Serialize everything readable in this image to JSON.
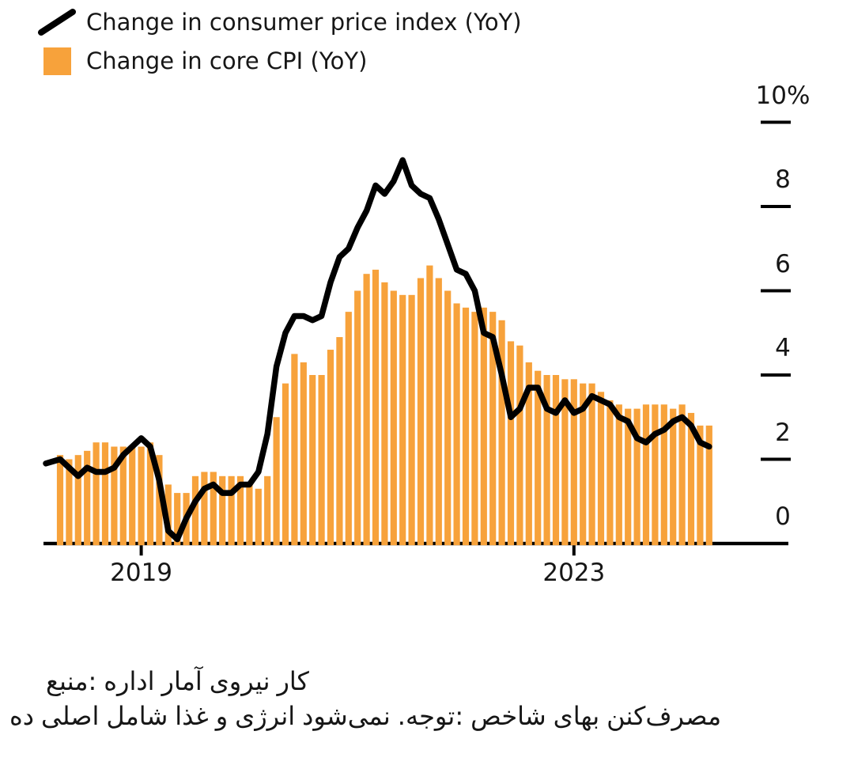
{
  "legend": {
    "items": [
      {
        "label": "Change in consumer price index (YoY)",
        "swatch": "black-line"
      },
      {
        "label": "Change in core CPI (YoY)",
        "swatch": "orange-square"
      }
    ]
  },
  "axes": {
    "y": {
      "items": [
        {
          "label": "10%",
          "value": 10
        },
        {
          "label": "8",
          "value": 8
        },
        {
          "label": "6",
          "value": 6
        },
        {
          "label": "4",
          "value": 4
        },
        {
          "label": "2",
          "value": 2
        },
        {
          "label": "0",
          "value": 0
        }
      ]
    },
    "x": {
      "items": [
        {
          "label": "2019",
          "tick_month": "2020-01"
        },
        {
          "label": "2023",
          "tick_month": "2024-01"
        }
      ]
    }
  },
  "footnote": {
    "source_text_logical": "منبع: اداره آمار نیروی کار",
    "note_text_logical": "توجه: شاخص بهای مصرف‌کننده اصلی شامل غذا و انرژی نمی‌شود.",
    "line1_words": [
      "منبع:",
      "اداره",
      "آمار",
      "نیروی",
      "کار"
    ],
    "line2_words": [
      "ده",
      "اصلی",
      "شامل",
      "غذا",
      "و",
      "انرژی",
      "نمی‌شود",
      ".توجه:",
      "شاخص",
      "بهای",
      "مصرف‌کنن"
    ]
  },
  "colors": {
    "bar": "#F7A23B",
    "line": "#000000",
    "axis": "#000000",
    "text": "#161616"
  },
  "chart_data": {
    "type": "bar+line",
    "title": "",
    "xlabel": "",
    "ylabel": "",
    "ylim": [
      0,
      10
    ],
    "y_ticks": [
      0,
      2,
      4,
      6,
      8,
      10
    ],
    "y_top_tick_label": "10%",
    "x_tick_labels": [
      "2019",
      "2023"
    ],
    "grid": false,
    "legend_position": "top-left",
    "x_unit": "month",
    "months": [
      "2019-04",
      "2019-05",
      "2019-06",
      "2019-07",
      "2019-08",
      "2019-09",
      "2019-10",
      "2019-11",
      "2019-12",
      "2020-01",
      "2020-02",
      "2020-03",
      "2020-04",
      "2020-05",
      "2020-06",
      "2020-07",
      "2020-08",
      "2020-09",
      "2020-10",
      "2020-11",
      "2020-12",
      "2021-01",
      "2021-02",
      "2021-03",
      "2021-04",
      "2021-05",
      "2021-06",
      "2021-07",
      "2021-08",
      "2021-09",
      "2021-10",
      "2021-11",
      "2021-12",
      "2022-01",
      "2022-02",
      "2022-03",
      "2022-04",
      "2022-05",
      "2022-06",
      "2022-07",
      "2022-08",
      "2022-09",
      "2022-10",
      "2022-11",
      "2022-12",
      "2023-01",
      "2023-02",
      "2023-03",
      "2023-04",
      "2023-05",
      "2023-06",
      "2023-07",
      "2023-08",
      "2023-09",
      "2023-10",
      "2023-11",
      "2023-12",
      "2024-01",
      "2024-02",
      "2024-03",
      "2024-04",
      "2024-05",
      "2024-06",
      "2024-07",
      "2024-08",
      "2024-09",
      "2024-10",
      "2024-11",
      "2024-12",
      "2025-01",
      "2025-02",
      "2025-03",
      "2025-04"
    ],
    "series": [
      {
        "name": "Change in consumer price index (YoY)",
        "type": "line",
        "color": "#000000",
        "values": [
          2.0,
          1.8,
          1.6,
          1.8,
          1.7,
          1.7,
          1.8,
          2.1,
          2.3,
          2.5,
          2.3,
          1.5,
          0.3,
          0.1,
          0.6,
          1.0,
          1.3,
          1.4,
          1.2,
          1.2,
          1.4,
          1.4,
          1.7,
          2.6,
          4.2,
          5.0,
          5.4,
          5.4,
          5.3,
          5.4,
          6.2,
          6.8,
          7.0,
          7.5,
          7.9,
          8.5,
          8.3,
          8.6,
          9.1,
          8.5,
          8.3,
          8.2,
          7.7,
          7.1,
          6.5,
          6.4,
          6.0,
          5.0,
          4.9,
          4.0,
          3.0,
          3.2,
          3.7,
          3.7,
          3.2,
          3.1,
          3.4,
          3.1,
          3.2,
          3.5,
          3.4,
          3.3,
          3.0,
          2.9,
          2.5,
          2.4,
          2.6,
          2.7,
          2.9,
          3.0,
          2.8,
          2.4,
          2.3
        ]
      },
      {
        "name": "Change in core CPI (YoY)",
        "type": "bar",
        "color": "#F7A23B",
        "values": [
          2.1,
          2.0,
          2.1,
          2.2,
          2.4,
          2.4,
          2.3,
          2.3,
          2.3,
          2.3,
          2.4,
          2.1,
          1.4,
          1.2,
          1.2,
          1.6,
          1.7,
          1.7,
          1.6,
          1.6,
          1.6,
          1.4,
          1.3,
          1.6,
          3.0,
          3.8,
          4.5,
          4.3,
          4.0,
          4.0,
          4.6,
          4.9,
          5.5,
          6.0,
          6.4,
          6.5,
          6.2,
          6.0,
          5.9,
          5.9,
          6.3,
          6.6,
          6.3,
          6.0,
          5.7,
          5.6,
          5.5,
          5.6,
          5.5,
          5.3,
          4.8,
          4.7,
          4.3,
          4.1,
          4.0,
          4.0,
          3.9,
          3.9,
          3.8,
          3.8,
          3.6,
          3.4,
          3.3,
          3.2,
          3.2,
          3.3,
          3.3,
          3.3,
          3.2,
          3.3,
          3.1,
          2.8,
          2.8
        ]
      }
    ]
  }
}
